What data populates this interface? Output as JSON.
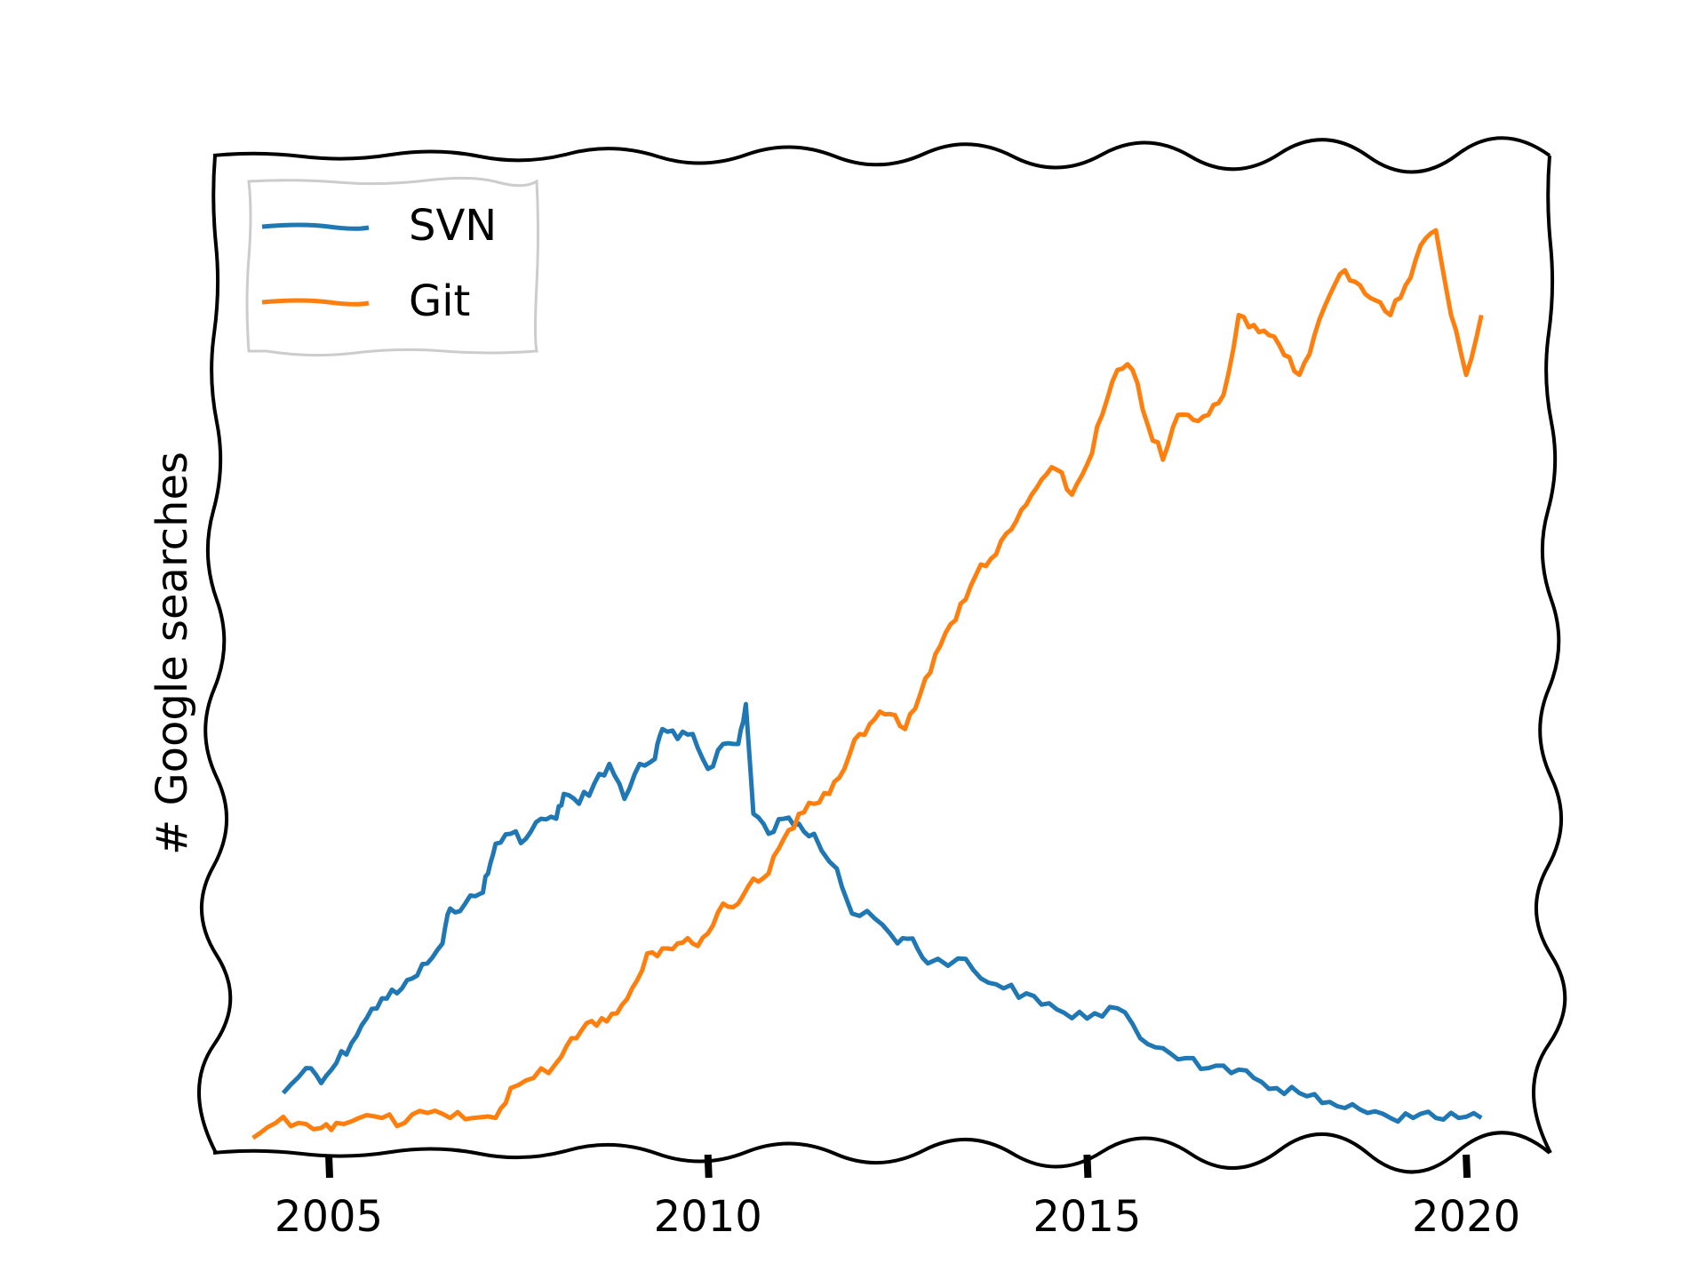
{
  "chart_data": {
    "type": "line",
    "xlabel": "",
    "ylabel": "# Google searches",
    "xlim": [
      2003.5,
      2021.1
    ],
    "ylim": [
      0,
      100
    ],
    "xticks": [
      2005,
      2010,
      2015,
      2020
    ],
    "xtick_labels": [
      "2005",
      "2010",
      "2015",
      "2020"
    ],
    "yticks_visible": false,
    "grid": false,
    "legend_position": "top-left",
    "style": "xkcd",
    "series": [
      {
        "name": "SVN",
        "color": "#1f77b4",
        "points": [
          [
            2004.4,
            6.0
          ],
          [
            2004.7,
            8.5
          ],
          [
            2004.9,
            7.0
          ],
          [
            2005.1,
            9.0
          ],
          [
            2005.3,
            11.0
          ],
          [
            2005.5,
            13.5
          ],
          [
            2005.7,
            15.5
          ],
          [
            2005.9,
            16.0
          ],
          [
            2006.1,
            17.5
          ],
          [
            2006.3,
            19.0
          ],
          [
            2006.5,
            21.0
          ],
          [
            2006.6,
            24.5
          ],
          [
            2006.8,
            25.0
          ],
          [
            2007.0,
            26.0
          ],
          [
            2007.1,
            28.0
          ],
          [
            2007.2,
            31.0
          ],
          [
            2007.4,
            32.0
          ],
          [
            2007.6,
            31.5
          ],
          [
            2007.8,
            33.5
          ],
          [
            2008.0,
            33.5
          ],
          [
            2008.1,
            36.0
          ],
          [
            2008.3,
            35.0
          ],
          [
            2008.5,
            37.0
          ],
          [
            2008.7,
            39.0
          ],
          [
            2008.9,
            35.5
          ],
          [
            2009.1,
            39.0
          ],
          [
            2009.3,
            39.5
          ],
          [
            2009.4,
            42.5
          ],
          [
            2009.6,
            41.5
          ],
          [
            2009.8,
            42.0
          ],
          [
            2010.0,
            38.5
          ],
          [
            2010.2,
            41.0
          ],
          [
            2010.4,
            41.0
          ],
          [
            2010.5,
            45.0
          ],
          [
            2010.6,
            34.0
          ],
          [
            2010.8,
            32.0
          ],
          [
            2011.0,
            33.5
          ],
          [
            2011.2,
            33.0
          ],
          [
            2011.4,
            32.0
          ],
          [
            2011.7,
            28.5
          ],
          [
            2011.9,
            24.0
          ],
          [
            2012.2,
            23.5
          ],
          [
            2012.5,
            21.0
          ],
          [
            2012.7,
            21.5
          ],
          [
            2012.9,
            19.0
          ],
          [
            2013.3,
            19.5
          ],
          [
            2013.6,
            17.5
          ],
          [
            2013.9,
            16.5
          ],
          [
            2014.2,
            16.0
          ],
          [
            2014.5,
            15.0
          ],
          [
            2014.8,
            13.5
          ],
          [
            2015.1,
            14.0
          ],
          [
            2015.4,
            14.5
          ],
          [
            2015.7,
            11.5
          ],
          [
            2016.0,
            10.5
          ],
          [
            2016.3,
            9.5
          ],
          [
            2016.6,
            8.5
          ],
          [
            2016.9,
            8.0
          ],
          [
            2017.2,
            7.5
          ],
          [
            2017.5,
            6.5
          ],
          [
            2017.8,
            6.0
          ],
          [
            2018.1,
            5.0
          ],
          [
            2018.4,
            4.5
          ],
          [
            2018.7,
            4.0
          ],
          [
            2019.0,
            3.5
          ],
          [
            2019.3,
            3.5
          ],
          [
            2019.6,
            3.5
          ],
          [
            2019.9,
            3.5
          ],
          [
            2020.2,
            3.5
          ]
        ]
      },
      {
        "name": "Git",
        "color": "#ff7f0e",
        "points": [
          [
            2004.0,
            1.5
          ],
          [
            2004.3,
            3.0
          ],
          [
            2004.6,
            3.0
          ],
          [
            2004.9,
            2.5
          ],
          [
            2005.1,
            3.0
          ],
          [
            2005.4,
            3.5
          ],
          [
            2005.7,
            3.5
          ],
          [
            2006.0,
            3.0
          ],
          [
            2006.3,
            4.0
          ],
          [
            2006.6,
            3.5
          ],
          [
            2006.9,
            3.5
          ],
          [
            2007.2,
            3.5
          ],
          [
            2007.4,
            6.5
          ],
          [
            2007.7,
            7.5
          ],
          [
            2008.0,
            9.0
          ],
          [
            2008.2,
            11.5
          ],
          [
            2008.4,
            13.0
          ],
          [
            2008.6,
            13.5
          ],
          [
            2008.8,
            14.0
          ],
          [
            2009.0,
            16.5
          ],
          [
            2009.2,
            20.0
          ],
          [
            2009.4,
            20.5
          ],
          [
            2009.6,
            21.0
          ],
          [
            2009.8,
            21.0
          ],
          [
            2010.0,
            22.0
          ],
          [
            2010.2,
            25.0
          ],
          [
            2010.4,
            25.0
          ],
          [
            2010.6,
            27.5
          ],
          [
            2010.8,
            28.0
          ],
          [
            2011.0,
            31.5
          ],
          [
            2011.2,
            34.0
          ],
          [
            2011.4,
            35.0
          ],
          [
            2011.6,
            36.0
          ],
          [
            2011.8,
            38.5
          ],
          [
            2012.0,
            42.0
          ],
          [
            2012.2,
            43.5
          ],
          [
            2012.4,
            44.0
          ],
          [
            2012.6,
            42.5
          ],
          [
            2012.8,
            46.0
          ],
          [
            2013.0,
            50.0
          ],
          [
            2013.2,
            53.0
          ],
          [
            2013.4,
            55.5
          ],
          [
            2013.6,
            59.0
          ],
          [
            2013.8,
            60.0
          ],
          [
            2014.0,
            62.5
          ],
          [
            2014.2,
            65.0
          ],
          [
            2014.4,
            67.5
          ],
          [
            2014.6,
            68.5
          ],
          [
            2014.8,
            66.0
          ],
          [
            2015.0,
            69.0
          ],
          [
            2015.2,
            74.0
          ],
          [
            2015.4,
            78.5
          ],
          [
            2015.6,
            78.5
          ],
          [
            2015.8,
            73.0
          ],
          [
            2016.0,
            69.5
          ],
          [
            2016.2,
            74.0
          ],
          [
            2016.4,
            73.5
          ],
          [
            2016.6,
            74.0
          ],
          [
            2016.8,
            76.0
          ],
          [
            2017.0,
            84.0
          ],
          [
            2017.2,
            83.0
          ],
          [
            2017.4,
            82.0
          ],
          [
            2017.6,
            80.0
          ],
          [
            2017.8,
            78.0
          ],
          [
            2018.0,
            82.0
          ],
          [
            2018.2,
            86.0
          ],
          [
            2018.4,
            88.5
          ],
          [
            2018.6,
            87.0
          ],
          [
            2018.8,
            85.5
          ],
          [
            2019.0,
            84.0
          ],
          [
            2019.2,
            87.0
          ],
          [
            2019.4,
            91.0
          ],
          [
            2019.6,
            92.5
          ],
          [
            2019.8,
            84.0
          ],
          [
            2020.0,
            78.0
          ],
          [
            2020.2,
            84.0
          ]
        ]
      }
    ]
  }
}
